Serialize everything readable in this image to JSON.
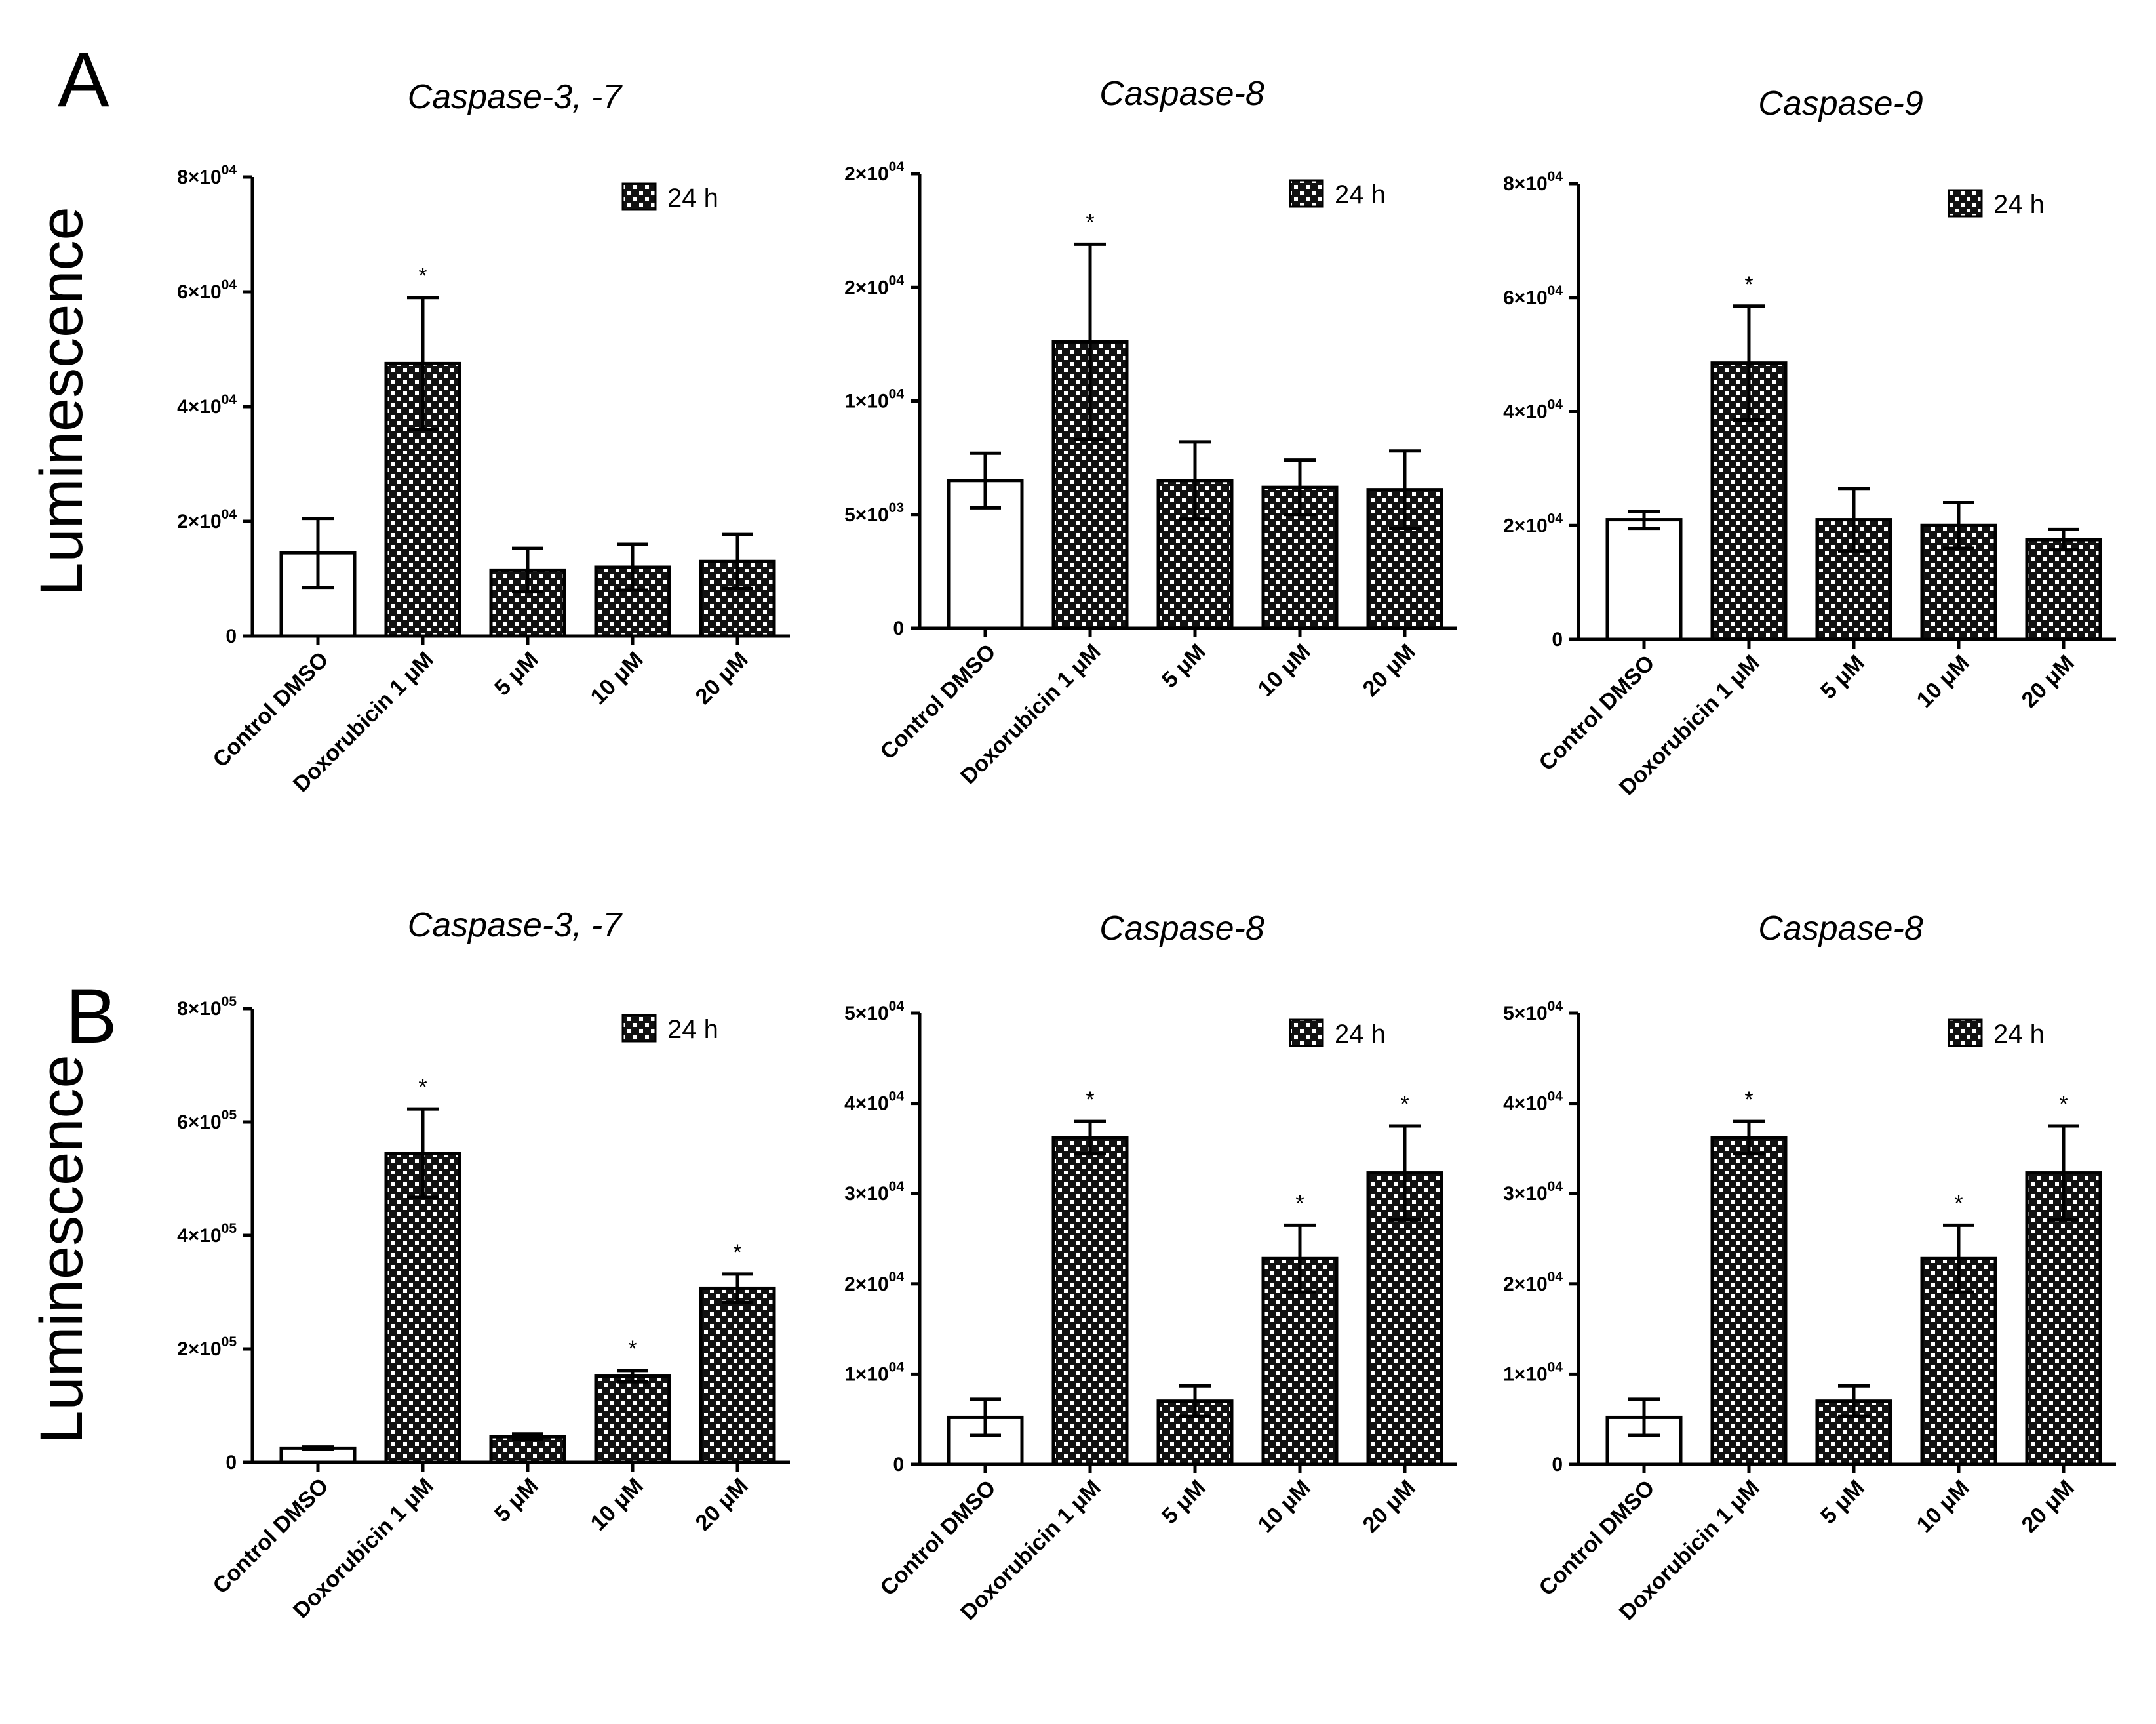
{
  "figure": {
    "panels": [
      {
        "letter": "A",
        "ylabel": "Luminescence"
      },
      {
        "letter": "B",
        "ylabel": "Luminescence"
      }
    ],
    "colors": {
      "outline": "#000000",
      "control_fill": "#ffffff",
      "pattern_dark": "#111111",
      "pattern_light": "#ffffff"
    }
  },
  "chart_data": [
    {
      "type": "bar",
      "panel": "A",
      "title": "Caspase-3, -7",
      "legend": "24 h",
      "xlabel": "",
      "ylabel": "Luminescence",
      "categories": [
        "Control DMSO",
        "Doxorubicin 1 μM",
        "5 μM",
        "10 μM",
        "20 μM"
      ],
      "values": [
        14500,
        47500,
        11500,
        12000,
        13000
      ],
      "errors": [
        6000,
        11500,
        3800,
        4000,
        4700
      ],
      "significant": [
        false,
        true,
        false,
        false,
        false
      ],
      "ylim": [
        0,
        80000
      ],
      "yticks": [
        0,
        20000,
        40000,
        60000,
        80000
      ],
      "ytick_labels": [
        {
          "m": "0",
          "e": ""
        },
        {
          "m": "2×10",
          "e": "04"
        },
        {
          "m": "4×10",
          "e": "04"
        },
        {
          "m": "6×10",
          "e": "04"
        },
        {
          "m": "8×10",
          "e": "04"
        }
      ]
    },
    {
      "type": "bar",
      "panel": "A",
      "title": "Caspase-8",
      "legend": "24 h",
      "xlabel": "",
      "ylabel": "Luminescence",
      "categories": [
        "Control DMSO",
        "Doxorubicin 1 μM",
        "5 μM",
        "10 μM",
        "20 μM"
      ],
      "values": [
        6500,
        12600,
        6500,
        6200,
        6100
      ],
      "errors": [
        1200,
        4300,
        1700,
        1200,
        1700
      ],
      "significant": [
        false,
        true,
        false,
        false,
        false
      ],
      "ylim": [
        0,
        20000
      ],
      "yticks": [
        0,
        5000,
        10000,
        15000,
        20000
      ],
      "ytick_labels": [
        {
          "m": "0",
          "e": ""
        },
        {
          "m": "5×10",
          "e": "03"
        },
        {
          "m": "1×10",
          "e": "04"
        },
        {
          "m": "2×10",
          "e": "04"
        },
        {
          "m": "2×10",
          "e": "04"
        }
      ]
    },
    {
      "type": "bar",
      "panel": "A",
      "title": "Caspase-9",
      "legend": "24 h",
      "xlabel": "",
      "ylabel": "Luminescence",
      "categories": [
        "Control DMSO",
        "Doxorubicin 1 μM",
        "5 μM",
        "10 μM",
        "20 μM"
      ],
      "values": [
        21000,
        48500,
        21000,
        20000,
        17500
      ],
      "errors": [
        1500,
        10000,
        5500,
        4000,
        1800
      ],
      "significant": [
        false,
        true,
        false,
        false,
        false
      ],
      "ylim": [
        0,
        80000
      ],
      "yticks": [
        0,
        20000,
        40000,
        60000,
        80000
      ],
      "ytick_labels": [
        {
          "m": "0",
          "e": ""
        },
        {
          "m": "2×10",
          "e": "04"
        },
        {
          "m": "4×10",
          "e": "04"
        },
        {
          "m": "6×10",
          "e": "04"
        },
        {
          "m": "8×10",
          "e": "04"
        }
      ]
    },
    {
      "type": "bar",
      "panel": "B",
      "title": "Caspase-3, -7",
      "legend": "24 h",
      "xlabel": "",
      "ylabel": "Luminescence",
      "categories": [
        "Control DMSO",
        "Doxorubicin 1 μM",
        "5 μM",
        "10 μM",
        "20 μM"
      ],
      "values": [
        25000,
        545000,
        45000,
        152000,
        307000
      ],
      "errors": [
        2000,
        78000,
        5000,
        10000,
        25000
      ],
      "significant": [
        false,
        true,
        false,
        true,
        true
      ],
      "ylim": [
        0,
        800000
      ],
      "yticks": [
        0,
        200000,
        400000,
        600000,
        800000
      ],
      "ytick_labels": [
        {
          "m": "0",
          "e": ""
        },
        {
          "m": "2×10",
          "e": "05"
        },
        {
          "m": "4×10",
          "e": "05"
        },
        {
          "m": "6×10",
          "e": "05"
        },
        {
          "m": "8×10",
          "e": "05"
        }
      ]
    },
    {
      "type": "bar",
      "panel": "B",
      "title": "Caspase-8",
      "legend": "24 h",
      "xlabel": "",
      "ylabel": "Luminescence",
      "categories": [
        "Control DMSO",
        "Doxorubicin 1 μM",
        "5 μM",
        "10 μM",
        "20 μM"
      ],
      "values": [
        5200,
        36200,
        7000,
        22800,
        32300
      ],
      "errors": [
        2000,
        1800,
        1700,
        3700,
        5200
      ],
      "significant": [
        false,
        true,
        false,
        true,
        true
      ],
      "ylim": [
        0,
        50000
      ],
      "yticks": [
        0,
        10000,
        20000,
        30000,
        40000,
        50000
      ],
      "ytick_labels": [
        {
          "m": "0",
          "e": ""
        },
        {
          "m": "1×10",
          "e": "04"
        },
        {
          "m": "2×10",
          "e": "04"
        },
        {
          "m": "3×10",
          "e": "04"
        },
        {
          "m": "4×10",
          "e": "04"
        },
        {
          "m": "5×10",
          "e": "04"
        }
      ]
    },
    {
      "type": "bar",
      "panel": "B",
      "title": "Caspase-8",
      "legend": "24 h",
      "xlabel": "",
      "ylabel": "Luminescence",
      "categories": [
        "Control DMSO",
        "Doxorubicin 1 μM",
        "5 μM",
        "10 μM",
        "20 μM"
      ],
      "values": [
        5200,
        36200,
        7000,
        22800,
        32300
      ],
      "errors": [
        2000,
        1800,
        1700,
        3700,
        5200
      ],
      "significant": [
        false,
        true,
        false,
        true,
        true
      ],
      "ylim": [
        0,
        50000
      ],
      "yticks": [
        0,
        10000,
        20000,
        30000,
        40000,
        50000
      ],
      "ytick_labels": [
        {
          "m": "0",
          "e": ""
        },
        {
          "m": "1×10",
          "e": "04"
        },
        {
          "m": "2×10",
          "e": "04"
        },
        {
          "m": "3×10",
          "e": "04"
        },
        {
          "m": "4×10",
          "e": "04"
        },
        {
          "m": "5×10",
          "e": "04"
        }
      ]
    }
  ]
}
